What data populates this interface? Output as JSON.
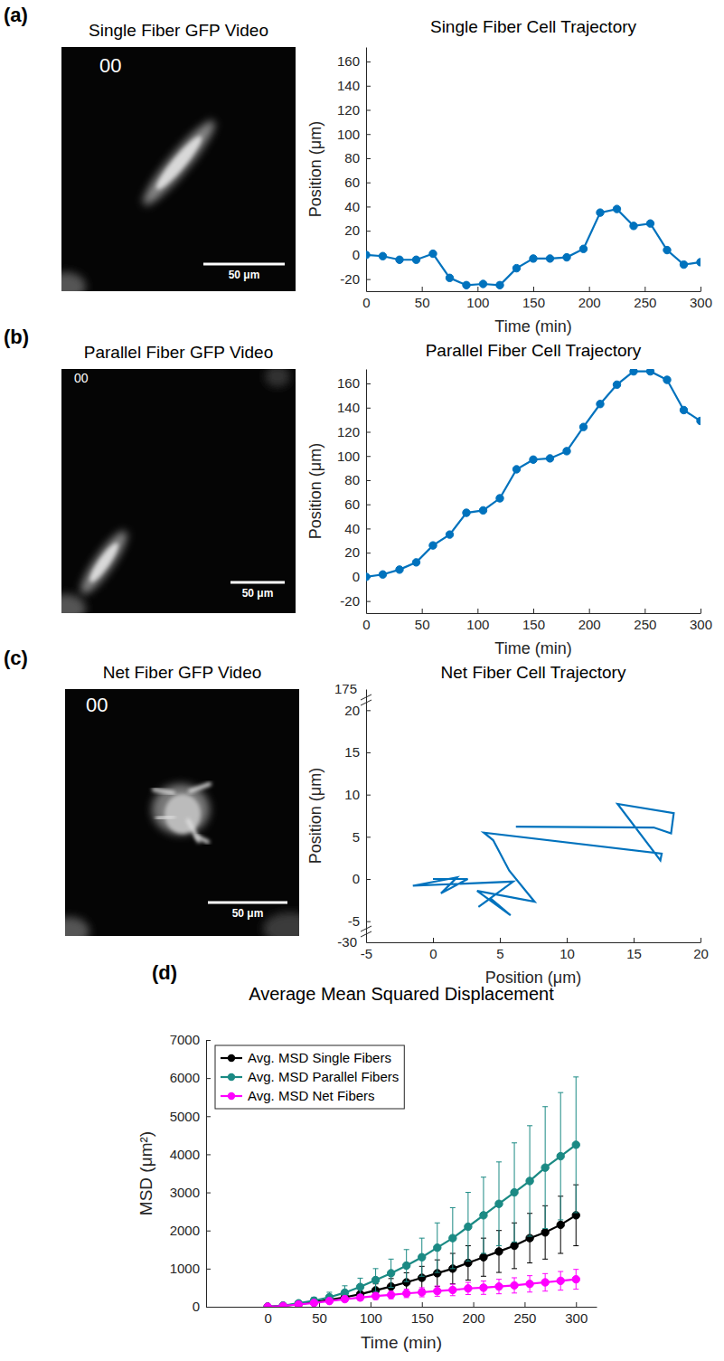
{
  "panel_labels": [
    "(a)",
    "(b)",
    "(c)",
    "(d)"
  ],
  "images": [
    {
      "title": "Single Fiber GFP Video",
      "timestamp": "00",
      "scale_bar": "50 μm"
    },
    {
      "title": "Parallel Fiber GFP Video",
      "timestamp": "00",
      "scale_bar": "50 μm"
    },
    {
      "title": "Net Fiber GFP Video",
      "timestamp": "00",
      "scale_bar": "50 μm"
    }
  ],
  "chart_data": [
    {
      "type": "line",
      "title": "Single Fiber Cell Trajectory",
      "xlabel": "Time (min)",
      "ylabel": "Position (μm)",
      "x": [
        0,
        15,
        30,
        45,
        60,
        75,
        90,
        105,
        120,
        135,
        150,
        165,
        180,
        195,
        210,
        225,
        240,
        255,
        270,
        285,
        300
      ],
      "values": [
        0,
        -1,
        -4,
        -4,
        1,
        -19,
        -25,
        -24,
        -25,
        -11,
        -3,
        -3,
        -2,
        5,
        35,
        38,
        24,
        26,
        4,
        -8,
        -6
      ],
      "color": "#0072bd",
      "marker": "circle",
      "xlim": [
        0,
        300
      ],
      "xticks": [
        0,
        50,
        100,
        150,
        200,
        250,
        300
      ],
      "ylim": [
        -30,
        172
      ],
      "yticks": [
        -20,
        0,
        20,
        40,
        60,
        80,
        100,
        120,
        140,
        160
      ]
    },
    {
      "type": "line",
      "title": "Parallel Fiber Cell Trajectory",
      "xlabel": "Time (min)",
      "ylabel": "Position (μm)",
      "x": [
        0,
        15,
        30,
        45,
        60,
        75,
        90,
        105,
        120,
        135,
        150,
        165,
        180,
        195,
        210,
        225,
        240,
        255,
        270,
        285,
        300
      ],
      "values": [
        0,
        2,
        6,
        12,
        26,
        35,
        53,
        55,
        65,
        89,
        97,
        98,
        104,
        124,
        143,
        159,
        170,
        170,
        163,
        138,
        129
      ],
      "color": "#0072bd",
      "marker": "circle",
      "xlim": [
        0,
        300
      ],
      "xticks": [
        0,
        50,
        100,
        150,
        200,
        250,
        300
      ],
      "ylim": [
        -30,
        172
      ],
      "yticks": [
        -20,
        0,
        20,
        40,
        60,
        80,
        100,
        120,
        140,
        160
      ]
    },
    {
      "type": "line",
      "title": "Net Fiber Cell Trajectory",
      "xlabel": "Position (μm)",
      "ylabel": "Position (μm)",
      "x": [
        0,
        2.6,
        0.6,
        1.8,
        -1.5,
        6,
        3.4,
        4.3,
        5.8,
        3.3,
        7.6,
        5.7,
        4.5,
        3.8,
        17.1,
        17,
        13.8,
        18,
        17.8,
        16.5,
        6.2
      ],
      "values": [
        0,
        0,
        -1.7,
        0.2,
        -0.8,
        -0.3,
        -3.3,
        -2.3,
        -4.3,
        -1.4,
        -2.7,
        1,
        4.6,
        5.5,
        3,
        2.2,
        8.9,
        7.8,
        5.4,
        6.1,
        6.2
      ],
      "color": "#0072bd",
      "xlim": [
        -5,
        20
      ],
      "xticks": [
        -5,
        0,
        5,
        10,
        15,
        20
      ],
      "ylim": [
        -7.5,
        22.5
      ],
      "yticks": [
        -5,
        0,
        5,
        10,
        15,
        20
      ],
      "annotations": [
        "175",
        "-30"
      ]
    },
    {
      "type": "line",
      "title": "Average Mean Squared Displacement",
      "xlabel": "Time (min)",
      "ylabel": "MSD (μm²)",
      "x": [
        0,
        15,
        30,
        45,
        60,
        75,
        90,
        105,
        120,
        135,
        150,
        165,
        180,
        195,
        210,
        225,
        240,
        255,
        270,
        285,
        300
      ],
      "marker": "circle",
      "legend": "upper left",
      "series": [
        {
          "name": "Avg. MSD Single Fibers",
          "color": "#000000",
          "values": [
            0,
            25,
            70,
            120,
            180,
            250,
            330,
            430,
            530,
            640,
            760,
            880,
            1000,
            1150,
            1300,
            1450,
            1600,
            1800,
            1950,
            2150,
            2400
          ],
          "errors": [
            0,
            10,
            30,
            50,
            70,
            100,
            130,
            170,
            210,
            250,
            300,
            350,
            400,
            450,
            500,
            550,
            600,
            650,
            700,
            750,
            800
          ]
        },
        {
          "name": "Avg. MSD Parallel Fibers",
          "color": "#1b8a84",
          "values": [
            0,
            30,
            90,
            160,
            250,
            370,
            520,
            700,
            880,
            1080,
            1300,
            1550,
            1800,
            2100,
            2400,
            2700,
            3000,
            3300,
            3650,
            3950,
            4250
          ],
          "errors": [
            0,
            30,
            60,
            90,
            130,
            180,
            230,
            300,
            370,
            420,
            500,
            650,
            800,
            900,
            1000,
            1100,
            1300,
            1450,
            1600,
            1670,
            1780
          ]
        },
        {
          "name": "Avg. MSD Net Fibers",
          "color": "#ff00ff",
          "values": [
            0,
            20,
            60,
            100,
            150,
            200,
            240,
            280,
            310,
            350,
            380,
            410,
            440,
            480,
            500,
            530,
            560,
            600,
            640,
            680,
            720
          ],
          "errors": [
            0,
            10,
            20,
            30,
            45,
            60,
            75,
            90,
            100,
            110,
            120,
            135,
            150,
            160,
            175,
            190,
            200,
            215,
            230,
            245,
            260
          ]
        }
      ],
      "xlim": [
        -60,
        320
      ],
      "xticks": [
        0,
        50,
        100,
        150,
        200,
        250,
        300
      ],
      "ylim": [
        0,
        7000
      ],
      "yticks": [
        0,
        1000,
        2000,
        3000,
        4000,
        5000,
        6000,
        7000
      ]
    }
  ]
}
